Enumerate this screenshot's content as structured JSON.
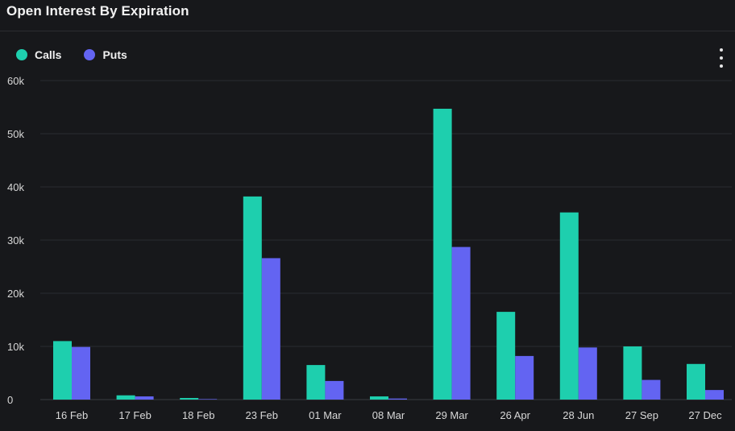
{
  "header": {
    "title": "Open Interest By Expiration",
    "menu_icon": "more-vertical-icon"
  },
  "legend": {
    "items": [
      {
        "label": "Calls",
        "color": "#1ecfae"
      },
      {
        "label": "Puts",
        "color": "#6364f2"
      }
    ]
  },
  "chart_data": {
    "type": "bar",
    "title": "Open Interest By Expiration",
    "xlabel": "",
    "ylabel": "",
    "categories": [
      "16 Feb",
      "17 Feb",
      "18 Feb",
      "23 Feb",
      "01 Mar",
      "08 Mar",
      "29 Mar",
      "26 Apr",
      "28 Jun",
      "27 Sep",
      "27 Dec"
    ],
    "series": [
      {
        "name": "Calls",
        "color": "#1ecfae",
        "values": [
          11000,
          800,
          300,
          38200,
          6500,
          600,
          54700,
          16500,
          35200,
          10000,
          6700
        ]
      },
      {
        "name": "Puts",
        "color": "#6364f2",
        "values": [
          9900,
          600,
          100,
          26600,
          3500,
          200,
          28700,
          8200,
          9800,
          3700,
          1800
        ]
      }
    ],
    "ylim": [
      0,
      60000
    ],
    "yticks": [
      0,
      10000,
      20000,
      30000,
      40000,
      50000,
      60000
    ],
    "ytick_labels": [
      "0",
      "10k",
      "20k",
      "30k",
      "40k",
      "50k",
      "60k"
    ],
    "grid": true,
    "legend_position": "top-left"
  }
}
